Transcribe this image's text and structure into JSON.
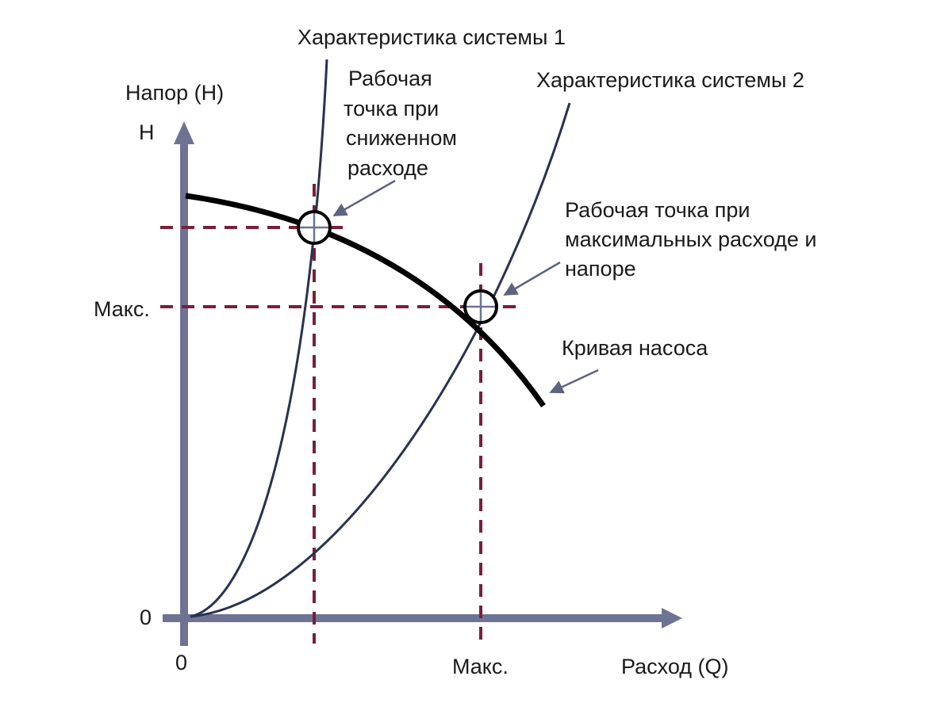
{
  "labels": {
    "y_axis_title": "Напор (H)",
    "y_axis_symbol": "H",
    "y_max": "Макс.",
    "y_zero": "0",
    "x_zero": "0",
    "x_max": "Макс.",
    "x_axis_title": "Расход (Q)",
    "system_curve_1": "Характеристика системы 1",
    "system_curve_2": "Характеристика системы 2",
    "reduced_flow_point": [
      "Рабочая",
      "точка при",
      "сниженном",
      "расходе"
    ],
    "max_point": [
      "Рабочая точка при",
      "максимальных расходе и",
      "напоре"
    ],
    "pump_curve": "Кривая насоса"
  },
  "colors": {
    "axis": "#6e7394",
    "system_curves": "#2b3150",
    "pump_curve": "#000000",
    "guide_lines": "#7a1e3a",
    "pointers": "#5e6380"
  }
}
